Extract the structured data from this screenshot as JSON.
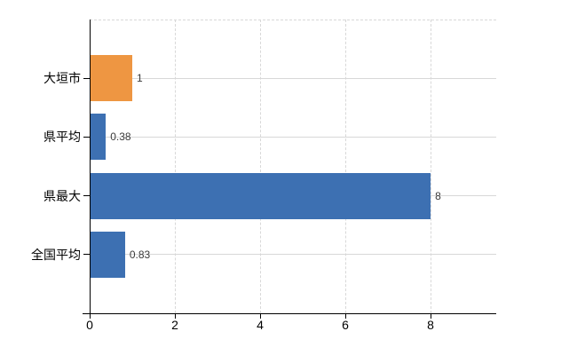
{
  "chart_data": {
    "type": "bar",
    "orientation": "horizontal",
    "title": "",
    "xlabel": "",
    "ylabel": "",
    "categories": [
      "大垣市",
      "県平均",
      "県最大",
      "全国平均"
    ],
    "values": [
      1,
      0.38,
      8,
      0.83
    ],
    "value_labels": [
      "1",
      "0.38",
      "8",
      "0.83"
    ],
    "bar_colors": [
      "#ee9642",
      "#3d70b2",
      "#3d70b2",
      "#3d70b2"
    ],
    "highlight_category": "大垣市",
    "x_tick_values": [
      0,
      2,
      4,
      6,
      8
    ],
    "x_tick_labels": [
      "0",
      "2",
      "4",
      "6",
      "8"
    ],
    "xlim": [
      0,
      9.54
    ],
    "grid": true,
    "legend": false,
    "colors": {
      "highlight_bar": "#ee9642",
      "default_bar": "#3d70b2",
      "axis": "#000000",
      "gridline": "#d8d8d8",
      "value_label": "#3a3a3a",
      "tick_label": "#000000",
      "background": "#ffffff"
    }
  }
}
